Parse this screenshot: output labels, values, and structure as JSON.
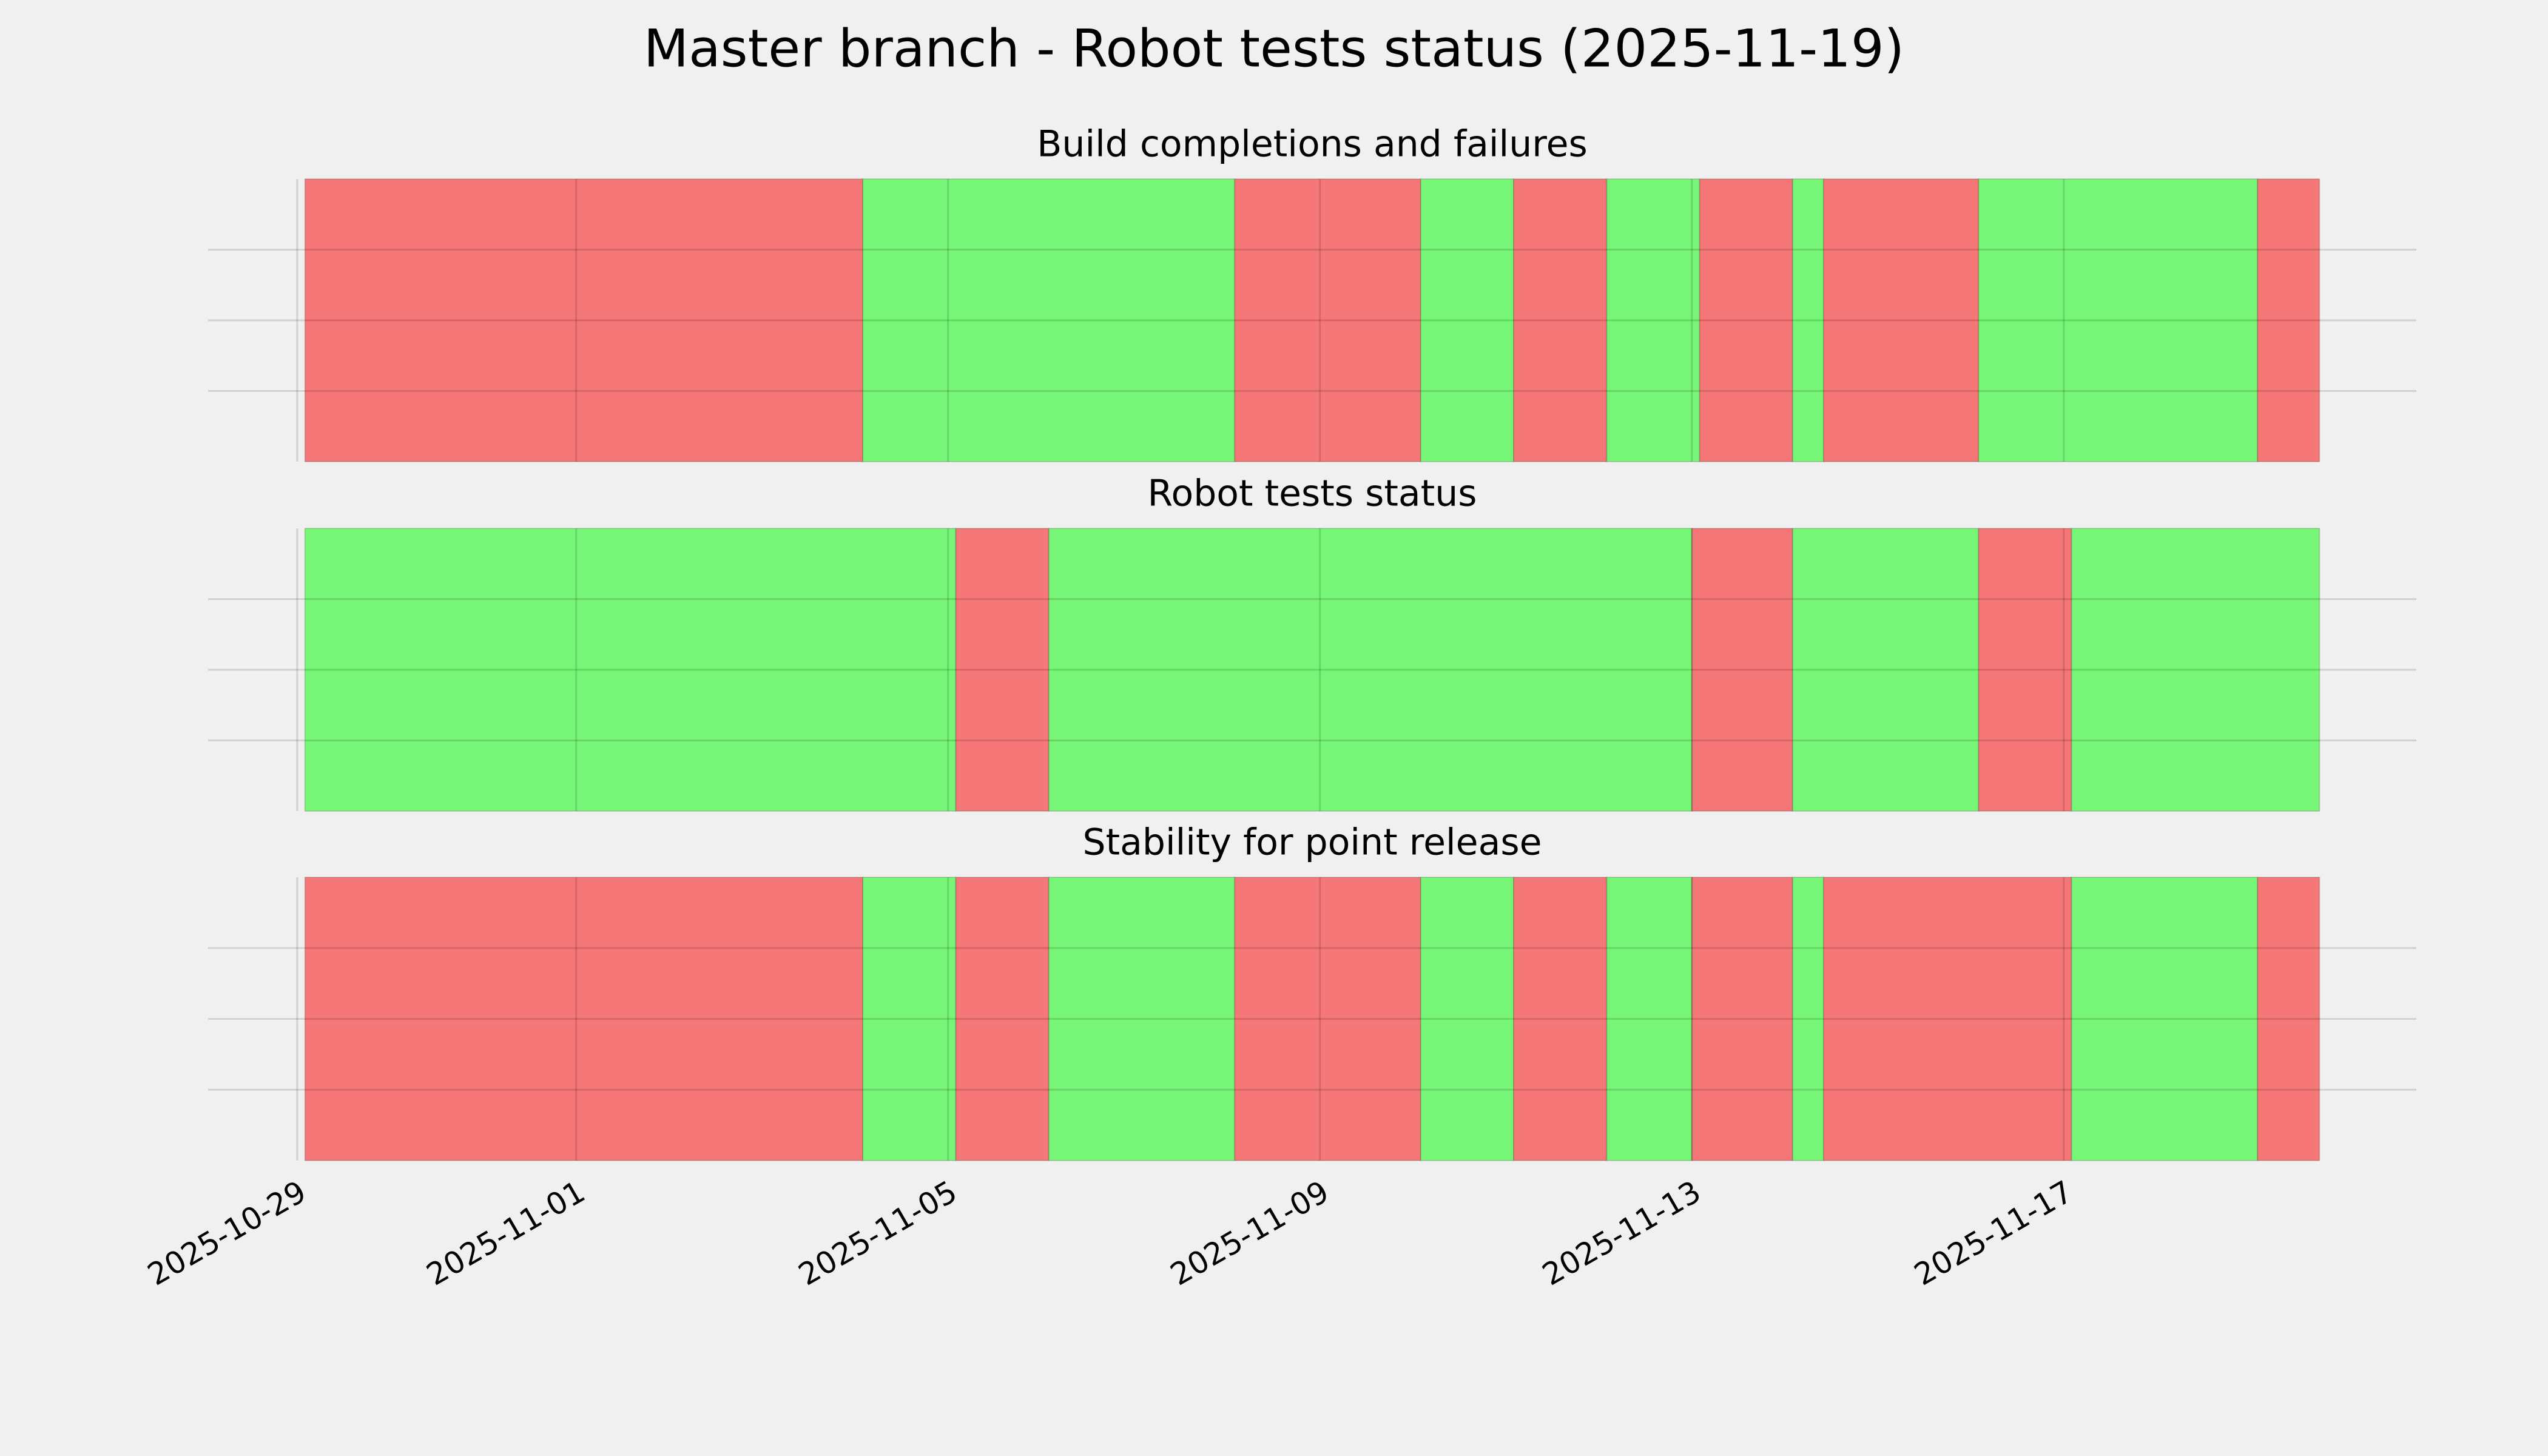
{
  "title": "Master branch - Robot tests status (2025-11-19)",
  "x_axis": {
    "lim": [
      "2025-10-28 01:00",
      "2025-11-20 19:00"
    ],
    "ticks": [
      "2025-10-29",
      "2025-11-01",
      "2025-11-05",
      "2025-11-09",
      "2025-11-13",
      "2025-11-17"
    ]
  },
  "chart_data": [
    {
      "type": "timeline",
      "title": "Build completions and failures",
      "colors": {
        "pass": "#77f577",
        "fail": "#f57777"
      },
      "ylim": [
        0,
        1
      ],
      "yticks": [
        0.25,
        0.5,
        0.75
      ],
      "grid": true,
      "segments": [
        {
          "start": "2025-10-29 02:00",
          "end": "2025-11-04 02:00",
          "status": "fail"
        },
        {
          "start": "2025-11-04 02:00",
          "end": "2025-11-08 02:00",
          "status": "pass"
        },
        {
          "start": "2025-11-08 02:00",
          "end": "2025-11-10 02:00",
          "status": "fail"
        },
        {
          "start": "2025-11-10 02:00",
          "end": "2025-11-11 02:00",
          "status": "pass"
        },
        {
          "start": "2025-11-11 02:00",
          "end": "2025-11-12 02:00",
          "status": "fail"
        },
        {
          "start": "2025-11-12 02:00",
          "end": "2025-11-13 02:00",
          "status": "pass"
        },
        {
          "start": "2025-11-13 02:00",
          "end": "2025-11-14 02:00",
          "status": "fail"
        },
        {
          "start": "2025-11-14 02:00",
          "end": "2025-11-14 10:00",
          "status": "pass"
        },
        {
          "start": "2025-11-14 10:00",
          "end": "2025-11-16 02:00",
          "status": "fail"
        },
        {
          "start": "2025-11-16 02:00",
          "end": "2025-11-19 02:00",
          "status": "pass"
        },
        {
          "start": "2025-11-19 02:00",
          "end": "2025-11-19 18:00",
          "status": "fail"
        }
      ]
    },
    {
      "type": "timeline",
      "title": "Robot tests status",
      "colors": {
        "pass": "#77f577",
        "fail": "#f57777"
      },
      "ylim": [
        0,
        1
      ],
      "yticks": [
        0.25,
        0.5,
        0.75
      ],
      "grid": true,
      "segments": [
        {
          "start": "2025-10-29 02:00",
          "end": "2025-11-05 02:00",
          "status": "pass"
        },
        {
          "start": "2025-11-05 02:00",
          "end": "2025-11-06 02:00",
          "status": "fail"
        },
        {
          "start": "2025-11-06 02:00",
          "end": "2025-11-13 00:00",
          "status": "pass"
        },
        {
          "start": "2025-11-13 00:00",
          "end": "2025-11-14 02:00",
          "status": "fail"
        },
        {
          "start": "2025-11-14 02:00",
          "end": "2025-11-16 02:00",
          "status": "pass"
        },
        {
          "start": "2025-11-16 02:00",
          "end": "2025-11-17 02:00",
          "status": "fail"
        },
        {
          "start": "2025-11-17 02:00",
          "end": "2025-11-19 18:00",
          "status": "pass"
        }
      ]
    },
    {
      "type": "timeline",
      "title": "Stability for point release",
      "colors": {
        "pass": "#77f577",
        "fail": "#f57777"
      },
      "ylim": [
        0,
        1
      ],
      "yticks": [
        0.25,
        0.5,
        0.75
      ],
      "grid": true,
      "segments": [
        {
          "start": "2025-10-29 02:00",
          "end": "2025-11-04 02:00",
          "status": "fail"
        },
        {
          "start": "2025-11-04 02:00",
          "end": "2025-11-05 02:00",
          "status": "pass"
        },
        {
          "start": "2025-11-05 02:00",
          "end": "2025-11-06 02:00",
          "status": "fail"
        },
        {
          "start": "2025-11-06 02:00",
          "end": "2025-11-08 02:00",
          "status": "pass"
        },
        {
          "start": "2025-11-08 02:00",
          "end": "2025-11-10 02:00",
          "status": "fail"
        },
        {
          "start": "2025-11-10 02:00",
          "end": "2025-11-11 02:00",
          "status": "pass"
        },
        {
          "start": "2025-11-11 02:00",
          "end": "2025-11-12 02:00",
          "status": "fail"
        },
        {
          "start": "2025-11-12 02:00",
          "end": "2025-11-13 00:00",
          "status": "pass"
        },
        {
          "start": "2025-11-13 00:00",
          "end": "2025-11-14 02:00",
          "status": "fail"
        },
        {
          "start": "2025-11-14 02:00",
          "end": "2025-11-14 10:00",
          "status": "pass"
        },
        {
          "start": "2025-11-14 10:00",
          "end": "2025-11-17 02:00",
          "status": "fail"
        },
        {
          "start": "2025-11-17 02:00",
          "end": "2025-11-19 02:00",
          "status": "pass"
        },
        {
          "start": "2025-11-19 02:00",
          "end": "2025-11-19 18:00",
          "status": "fail"
        }
      ]
    }
  ]
}
